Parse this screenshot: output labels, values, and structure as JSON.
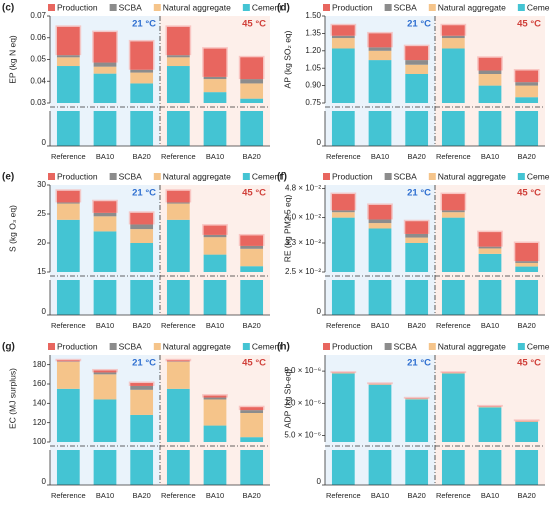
{
  "chart_data": [
    {
      "type": "bar",
      "panel": "(c)",
      "ylabel": "EP (kg N eq)",
      "annotations": [
        "21 °C",
        "45 °C"
      ],
      "categories": [
        "Reference",
        "BA10",
        "BA20",
        "Reference",
        "BA10",
        "BA20"
      ],
      "series": [
        {
          "name": "Production",
          "color": "#e8665f",
          "values": [
            0.013,
            0.014,
            0.013,
            0.013,
            0.013,
            0.01
          ]
        },
        {
          "name": "SCBA",
          "color": "#8c8c8c",
          "values": [
            0.001,
            0.0019,
            0.0013,
            0.001,
            0.001,
            0.002
          ]
        },
        {
          "name": "Natural aggregate",
          "color": "#f5c48a",
          "values": [
            0.004,
            0.0032,
            0.005,
            0.004,
            0.006,
            0.007
          ]
        },
        {
          "name": "Cement",
          "color": "#44c4d3",
          "values": [
            0.047,
            0.0435,
            0.039,
            0.047,
            0.035,
            0.032
          ]
        }
      ],
      "ylim": [
        0.03,
        0.07
      ],
      "yticks": [
        0.03,
        0.04,
        0.05,
        0.06,
        0.07
      ],
      "ylim_lower": [
        0,
        0.03
      ],
      "yticks_lower": [
        0
      ]
    },
    {
      "type": "bar",
      "panel": "(d)",
      "ylabel": "AP (kg SO₂ eq)",
      "annotations": [
        "21 °C",
        "45 °C"
      ],
      "categories": [
        "Reference",
        "BA10",
        "BA20",
        "Reference",
        "BA10",
        "BA20"
      ],
      "series": [
        {
          "name": "Production",
          "color": "#e8665f",
          "values": [
            0.09,
            0.12,
            0.12,
            0.09,
            0.11,
            0.1
          ]
        },
        {
          "name": "SCBA",
          "color": "#8c8c8c",
          "values": [
            0.02,
            0.03,
            0.04,
            0.02,
            0.03,
            0.03
          ]
        },
        {
          "name": "Natural aggregate",
          "color": "#f5c48a",
          "values": [
            0.09,
            0.08,
            0.08,
            0.09,
            0.1,
            0.1
          ]
        },
        {
          "name": "Cement",
          "color": "#44c4d3",
          "values": [
            1.22,
            1.12,
            1.0,
            1.22,
            0.9,
            0.8
          ]
        }
      ],
      "ylim": [
        0.75,
        1.5
      ],
      "yticks": [
        0.75,
        {
          "value": 0.9,
          "label": "0.90"
        },
        1.05,
        {
          "value": 1.2,
          "label": "1.20"
        },
        1.35,
        {
          "value": 1.5,
          "label": "1.50"
        }
      ],
      "ylim_lower": [
        0,
        0.75
      ],
      "yticks_lower": [
        0
      ]
    },
    {
      "type": "bar",
      "panel": "(e)",
      "ylabel": "S (kg O₃ eq)",
      "annotations": [
        "21 °C",
        "45 °C"
      ],
      "categories": [
        "Reference",
        "BA10",
        "BA20",
        "Reference",
        "BA10",
        "BA20"
      ],
      "series": [
        {
          "name": "Production",
          "color": "#e8665f",
          "values": [
            2,
            2,
            2,
            2,
            1.6,
            1.8
          ]
        },
        {
          "name": "SCBA",
          "color": "#8c8c8c",
          "values": [
            0.2,
            0.6,
            0.8,
            0.2,
            0.4,
            0.5
          ]
        },
        {
          "name": "Natural aggregate",
          "color": "#f5c48a",
          "values": [
            2.8,
            2.6,
            2.4,
            2.8,
            3,
            3
          ]
        },
        {
          "name": "Cement",
          "color": "#44c4d3",
          "values": [
            24,
            22,
            20,
            24,
            18,
            16
          ]
        }
      ],
      "ylim": [
        15,
        30
      ],
      "yticks": [
        15,
        20,
        25,
        30
      ],
      "ylim_lower": [
        0,
        15
      ],
      "yticks_lower": [
        0
      ]
    },
    {
      "type": "bar",
      "panel": "(f)",
      "ylabel": "RE (kg PM2.5 eq)",
      "annotations": [
        "21 °C",
        "45 °C"
      ],
      "categories": [
        "Reference",
        "BA10",
        "BA20",
        "Reference",
        "BA10",
        "BA20"
      ],
      "series": [
        {
          "name": "Production",
          "color": "#e8665f",
          "values": [
            0.0045,
            0.004,
            0.0035,
            0.0045,
            0.004,
            0.005
          ]
        },
        {
          "name": "SCBA",
          "color": "#8c8c8c",
          "values": [
            0.0005,
            0.001,
            0.001,
            0.0005,
            0.0005,
            0.0005
          ]
        },
        {
          "name": "Natural aggregate",
          "color": "#f5c48a",
          "values": [
            0.0015,
            0.0015,
            0.0015,
            0.0015,
            0.0015,
            0.001
          ]
        },
        {
          "name": "Cement",
          "color": "#44c4d3",
          "values": [
            0.04,
            0.037,
            0.033,
            0.04,
            0.03,
            0.0265
          ]
        }
      ],
      "ylim": [
        0.025,
        0.049
      ],
      "yticks": [
        {
          "value": 0.025,
          "label": "2.5 × 10⁻²"
        },
        {
          "value": 0.033,
          "label": "3.3 × 10⁻²"
        },
        {
          "value": 0.04,
          "label": "4.0 × 10⁻²"
        },
        {
          "value": 0.048,
          "label": "4.8 × 10⁻²"
        }
      ],
      "ylim_lower": [
        0,
        0.025
      ],
      "yticks_lower": [
        0
      ]
    },
    {
      "type": "bar",
      "panel": "(g)",
      "ylabel": "EC (MJ surplus)",
      "annotations": [
        "21 °C",
        "45 °C"
      ],
      "categories": [
        "Reference",
        "BA10",
        "BA20",
        "Reference",
        "BA10",
        "BA20"
      ],
      "series": [
        {
          "name": "Production",
          "color": "#e8665f",
          "values": [
            1,
            2,
            3,
            1,
            2,
            3
          ]
        },
        {
          "name": "SCBA",
          "color": "#8c8c8c",
          "values": [
            0.5,
            2,
            4,
            0.5,
            2,
            3
          ]
        },
        {
          "name": "Natural aggregate",
          "color": "#f5c48a",
          "values": [
            28,
            26,
            26,
            28,
            27,
            25
          ]
        },
        {
          "name": "Cement",
          "color": "#44c4d3",
          "values": [
            155,
            144,
            128,
            155,
            117,
            105
          ]
        }
      ],
      "ylim": [
        100,
        190
      ],
      "yticks": [
        100,
        120,
        140,
        160,
        180
      ],
      "ylim_lower": [
        0,
        100
      ],
      "yticks_lower": [
        0
      ]
    },
    {
      "type": "bar",
      "panel": "(h)",
      "ylabel": "ADP (kg Sb-eq)",
      "annotations": [
        "21 °C",
        "45 °C"
      ],
      "categories": [
        "Reference",
        "BA10",
        "BA20",
        "Reference",
        "BA10",
        "BA20"
      ],
      "series": [
        {
          "name": "Production",
          "color": "#e8665f",
          "values": [
            2e-08,
            2e-08,
            2e-08,
            2e-08,
            2e-08,
            2e-08
          ]
        },
        {
          "name": "SCBA",
          "color": "#8c8c8c",
          "values": [
            0,
            1e-08,
            1e-08,
            0,
            1e-08,
            1e-08
          ]
        },
        {
          "name": "Natural aggregate",
          "color": "#f5c48a",
          "values": [
            3e-08,
            3e-08,
            3e-08,
            3e-08,
            3e-08,
            3e-08
          ]
        },
        {
          "name": "Cement",
          "color": "#44c4d3",
          "values": [
            8.85e-06,
            8.15e-06,
            7.25e-06,
            8.85e-06,
            6.75e-06,
            5.85e-06
          ]
        }
      ],
      "ylim": [
        4.6e-06,
        1e-05
      ],
      "yticks": [
        {
          "value": 5e-06,
          "label": "5.0 × 10⁻⁶"
        },
        {
          "value": 7e-06,
          "label": "7.0 × 10⁻⁶"
        },
        {
          "value": 9e-06,
          "label": "9.0 × 10⁻⁶"
        }
      ],
      "ylim_lower": [
        0,
        4.6e-06
      ],
      "yticks_lower": [
        0
      ]
    }
  ]
}
